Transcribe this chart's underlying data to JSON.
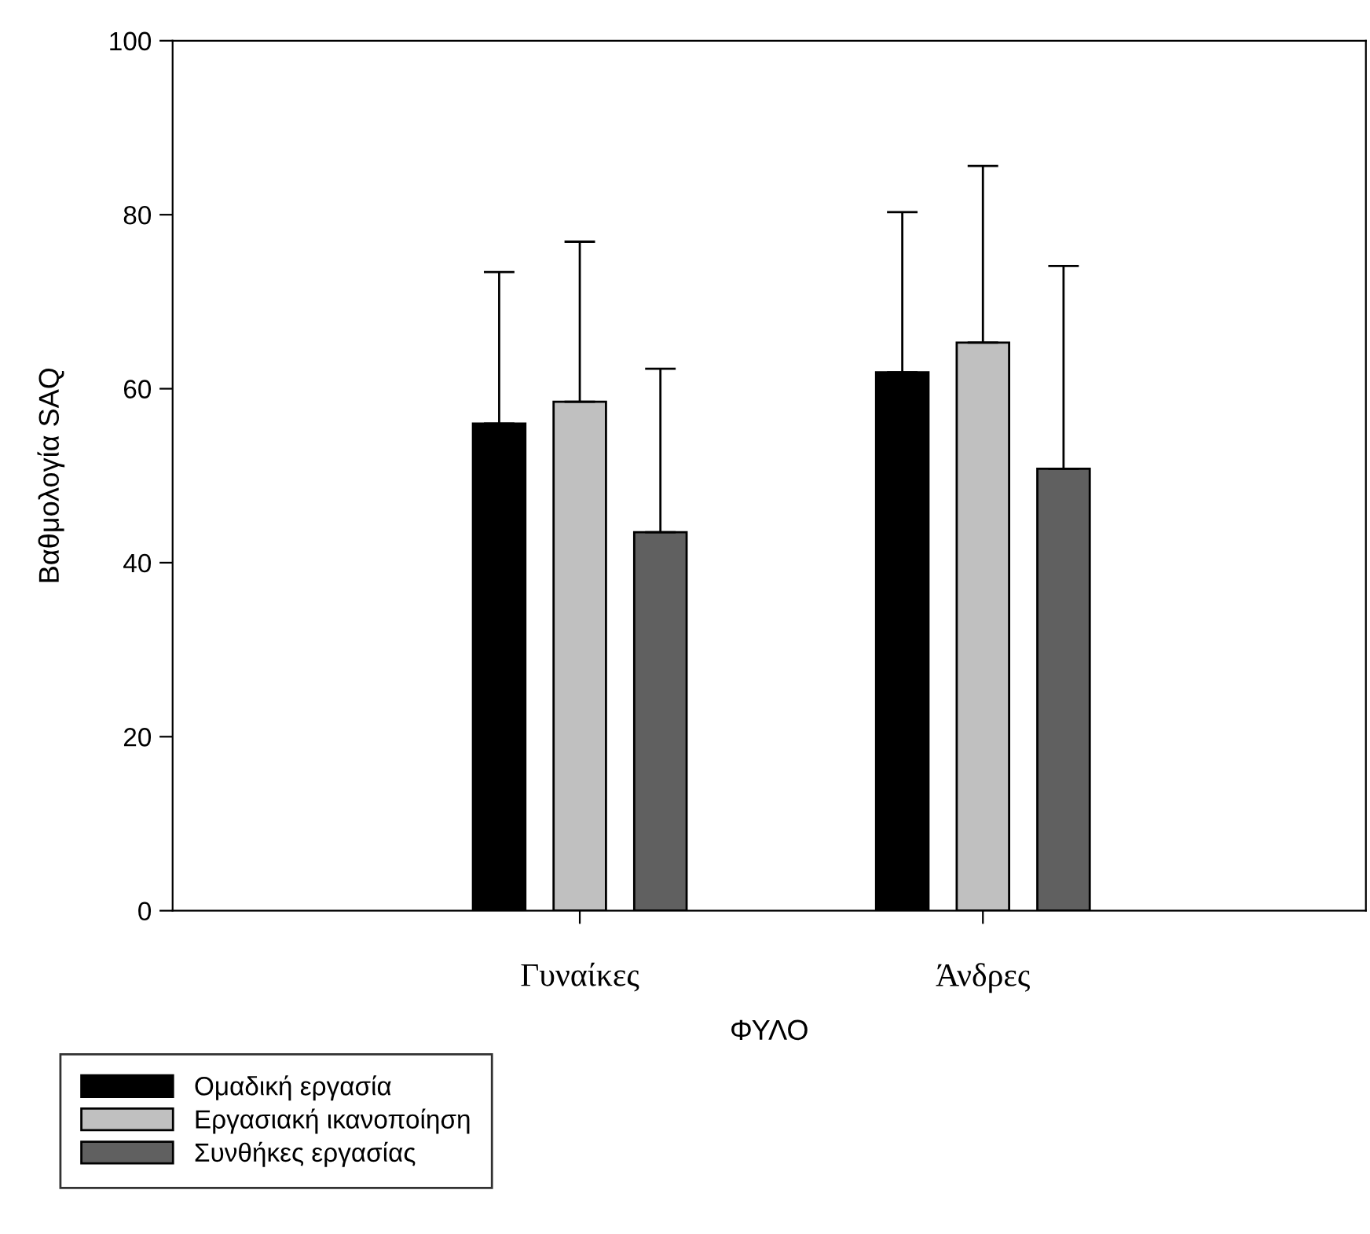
{
  "chart_data": {
    "type": "bar",
    "xlabel": "ΦΥΛΟ",
    "ylabel": "Βαθμολογία SAQ",
    "categories": [
      "Γυναίκες",
      "Άνδρες"
    ],
    "series": [
      {
        "name": "Ομαδική εργασία",
        "color": "#000000",
        "values": [
          56.0,
          61.9
        ],
        "errors": [
          [
            56.0,
            73.4
          ],
          [
            61.9,
            80.3
          ]
        ]
      },
      {
        "name": "Εργασιακή ικανοποίηση",
        "color": "#c0c0c0",
        "values": [
          58.5,
          65.3
        ],
        "errors": [
          [
            58.5,
            76.9
          ],
          [
            65.3,
            85.6
          ]
        ]
      },
      {
        "name": "Συνθήκες εργασίας",
        "color": "#606060",
        "values": [
          43.5,
          50.8
        ],
        "errors": [
          [
            43.5,
            62.3
          ],
          [
            50.8,
            74.1
          ]
        ]
      }
    ],
    "ylim": [
      0,
      100
    ],
    "yticks": [
      0,
      20,
      40,
      60,
      80,
      100
    ],
    "grid": false,
    "legend": "bottom left"
  }
}
